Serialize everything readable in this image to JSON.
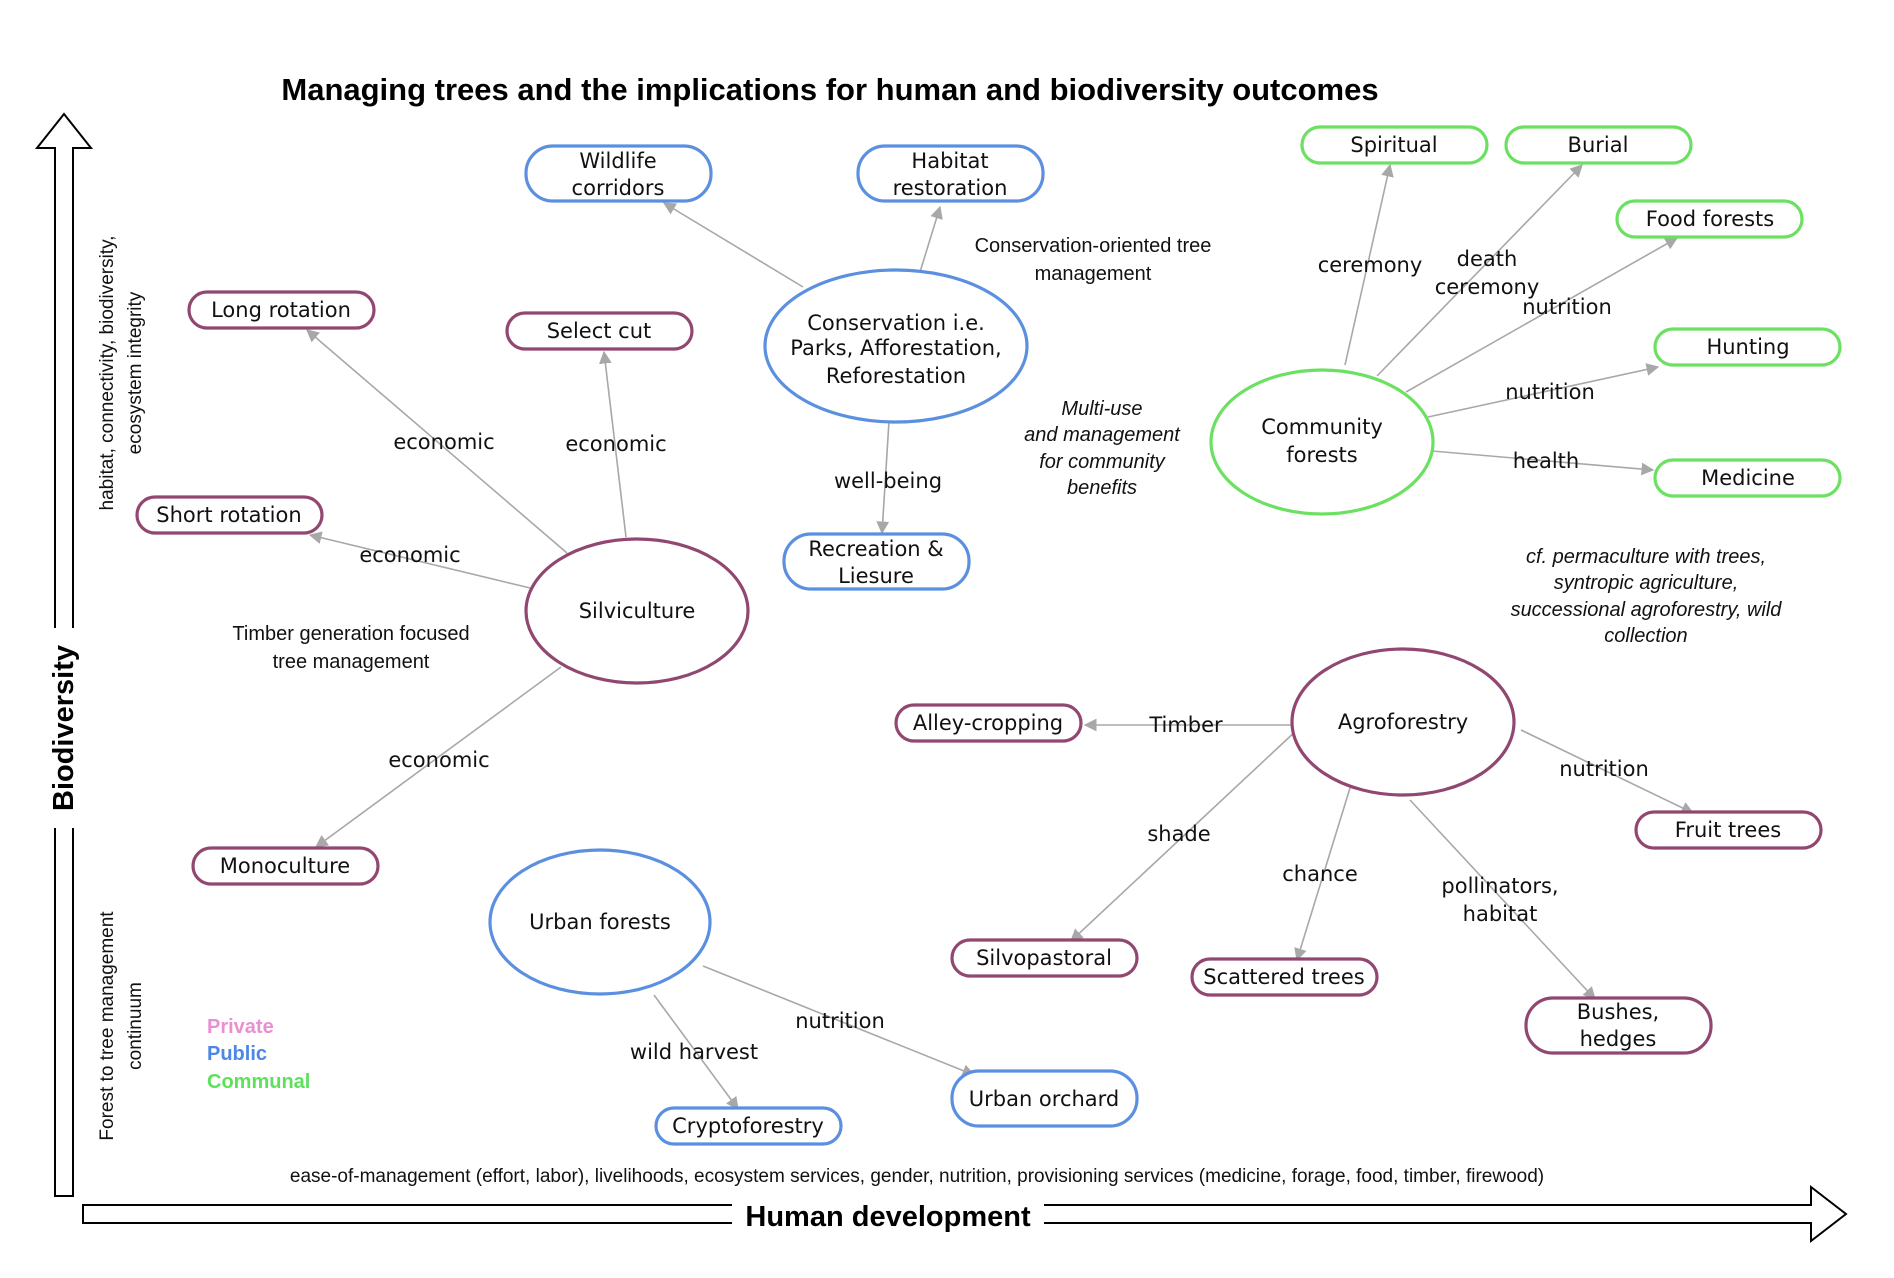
{
  "title": "Managing trees and the implications for human and biodiversity outcomes",
  "colors": {
    "private": "#91476f",
    "public": "#5b8fe0",
    "communal": "#6be061",
    "legend_private": "#ea8fd0",
    "legend_public": "#4c86e6",
    "legend_communal": "#5fe05a",
    "edge": "#a8a8a8"
  },
  "y_axis": {
    "title": "Biodiversity",
    "top_label_line1": "habitat, connectivity, biodiversity,",
    "top_label_line2": "ecosystem integrity",
    "bottom_label_line1": "Forest to tree management",
    "bottom_label_line2": "continuum"
  },
  "x_axis": {
    "title": "Human development",
    "label": "ease-of-management (effort, labor), livelihoods, ecosystem services, gender, nutrition, provisioning services (medicine, forage, food, timber, firewood)"
  },
  "legend": {
    "private": "Private",
    "public": "Public",
    "communal": "Communal"
  },
  "notes": {
    "conservation_line1": "Conservation-oriented tree",
    "conservation_line2": "management",
    "multiuse_line1": "Multi-use",
    "multiuse_line2": "and management",
    "multiuse_line3": "for community",
    "multiuse_line4": "benefits",
    "timber_line1": "Timber generation focused",
    "timber_line2": "tree management",
    "permaculture_line1": "cf. permaculture with trees,",
    "permaculture_line2": "syntropic agriculture,",
    "permaculture_line3": "successional agroforestry, wild",
    "permaculture_line4": "collection"
  },
  "nodes": {
    "conservation": {
      "line1": "Conservation i.e.",
      "line2": "Parks, Afforestation,",
      "line3": "Reforestation",
      "type": "public"
    },
    "wildlife_corridors": {
      "line1": "Wildlife",
      "line2": "corridors",
      "type": "public"
    },
    "habitat_restoration": {
      "line1": "Habitat",
      "line2": "restoration",
      "type": "public"
    },
    "recreation": {
      "line1": "Recreation &",
      "line2": "Liesure",
      "type": "public"
    },
    "community_forests": {
      "line1": "Community",
      "line2": "forests",
      "type": "communal"
    },
    "spiritual": {
      "label": "Spiritual",
      "type": "communal"
    },
    "burial": {
      "label": "Burial",
      "type": "communal"
    },
    "food_forests": {
      "label": "Food forests",
      "type": "communal"
    },
    "hunting": {
      "label": "Hunting",
      "type": "communal"
    },
    "medicine": {
      "label": "Medicine",
      "type": "communal"
    },
    "silviculture": {
      "label": "Silviculture",
      "type": "private"
    },
    "long_rotation": {
      "label": "Long rotation",
      "type": "private"
    },
    "select_cut": {
      "label": "Select cut",
      "type": "private"
    },
    "short_rotation": {
      "label": "Short rotation",
      "type": "private"
    },
    "monoculture": {
      "label": "Monoculture",
      "type": "private"
    },
    "agroforestry": {
      "label": "Agroforestry",
      "type": "private"
    },
    "alley_cropping": {
      "label": "Alley-cropping",
      "type": "private"
    },
    "fruit_trees": {
      "label": "Fruit trees",
      "type": "private"
    },
    "silvopastoral": {
      "label": "Silvopastoral",
      "type": "private"
    },
    "scattered_trees": {
      "label": "Scattered trees",
      "type": "private"
    },
    "bushes_hedges": {
      "line1": "Bushes,",
      "line2": "hedges",
      "type": "private"
    },
    "urban_forests": {
      "label": "Urban forests",
      "type": "public"
    },
    "cryptoforestry": {
      "label": "Cryptoforestry",
      "type": "public"
    },
    "urban_orchard": {
      "label": "Urban orchard",
      "type": "public"
    }
  },
  "edge_labels": {
    "well_being": "well-being",
    "ceremony": "ceremony",
    "death_ceremony_line1": "death",
    "death_ceremony_line2": "ceremony",
    "nutrition_food": "nutrition",
    "nutrition_hunting": "nutrition",
    "health": "health",
    "economic_long": "economic",
    "economic_select": "economic",
    "economic_short": "economic",
    "economic_mono": "economic",
    "timber": "Timber",
    "nutrition_fruit": "nutrition",
    "shade": "shade",
    "chance": "chance",
    "pollinators_line1": "pollinators,",
    "pollinators_line2": "habitat",
    "wild_harvest": "wild harvest",
    "nutrition_orchard": "nutrition"
  }
}
